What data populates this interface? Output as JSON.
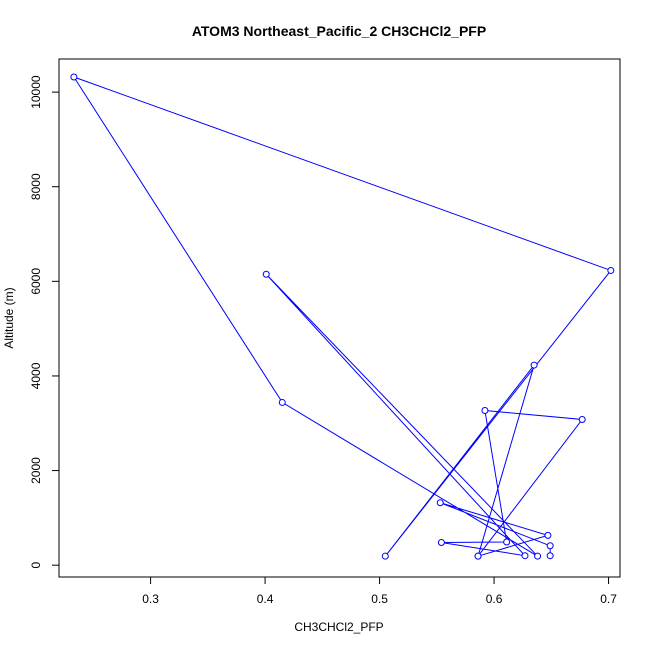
{
  "chart_data": {
    "type": "line",
    "title": "ATOM3 Northeast_Pacific_2 CH3CHCl2_PFP",
    "xlabel": "CH3CHCl2_PFP",
    "ylabel": "Altitude (m)",
    "xlim": [
      0.22,
      0.71
    ],
    "ylim": [
      -250,
      10700
    ],
    "xticks": [
      0.3,
      0.4,
      0.5,
      0.6,
      0.7
    ],
    "xtick_labels": [
      "0.3",
      "0.4",
      "0.5",
      "0.6",
      "0.7"
    ],
    "yticks": [
      0,
      2000,
      4000,
      6000,
      8000,
      10000
    ],
    "ytick_labels": [
      "0",
      "2000",
      "4000",
      "6000",
      "8000",
      "10000"
    ],
    "grid": false,
    "color": "#0000ff",
    "series": [
      {
        "marker": "open-circle",
        "x": [
          0.649,
          0.649,
          0.553,
          0.647,
          0.586,
          0.635,
          0.505,
          0.702,
          0.233,
          0.415,
          0.638,
          0.401,
          0.627,
          0.554,
          0.611,
          0.592,
          0.677,
          0.586
        ],
        "y": [
          200,
          410,
          1320,
          630,
          190,
          4230,
          190,
          6230,
          10320,
          3440,
          190,
          6150,
          200,
          480,
          490,
          3270,
          3080,
          190
        ]
      }
    ]
  }
}
